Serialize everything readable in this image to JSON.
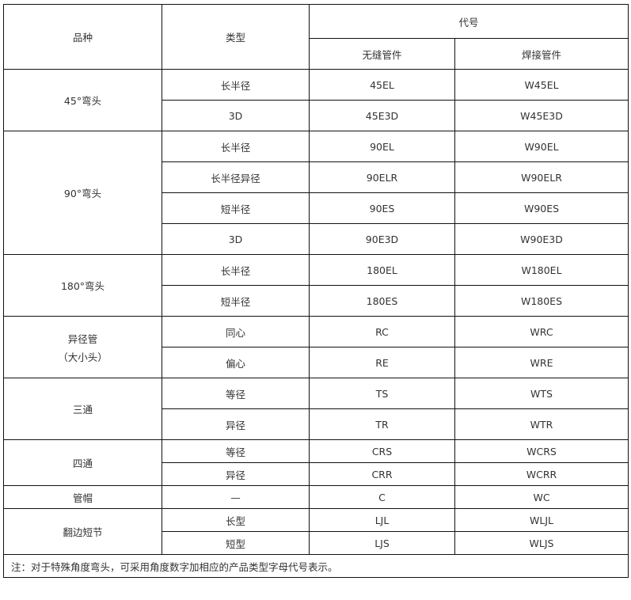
{
  "header": {
    "variety": "品种",
    "type": "类型",
    "code": "代号",
    "seamless": "无缝管件",
    "welded": "焊接管件"
  },
  "groups": [
    {
      "variety": "45°弯头",
      "rows": [
        {
          "type": "长半径",
          "seamless": "45EL",
          "welded": "W45EL"
        },
        {
          "type": "3D",
          "seamless": "45E3D",
          "welded": "W45E3D"
        }
      ]
    },
    {
      "variety": "90°弯头",
      "rows": [
        {
          "type": "长半径",
          "seamless": "90EL",
          "welded": "W90EL"
        },
        {
          "type": "长半径异径",
          "seamless": "90ELR",
          "welded": "W90ELR"
        },
        {
          "type": "短半径",
          "seamless": "90ES",
          "welded": "W90ES"
        },
        {
          "type": "3D",
          "seamless": "90E3D",
          "welded": "W90E3D"
        }
      ]
    },
    {
      "variety": "180°弯头",
      "rows": [
        {
          "type": "长半径",
          "seamless": "180EL",
          "welded": "W180EL"
        },
        {
          "type": "短半径",
          "seamless": "180ES",
          "welded": "W180ES"
        }
      ]
    },
    {
      "variety": "异径管",
      "variety_sub": "（大小头）",
      "rows": [
        {
          "type": "同心",
          "seamless": "RC",
          "welded": "WRC"
        },
        {
          "type": "偏心",
          "seamless": "RE",
          "welded": "WRE"
        }
      ]
    },
    {
      "variety": "三通",
      "rows": [
        {
          "type": "等径",
          "seamless": "TS",
          "welded": "WTS"
        },
        {
          "type": "异径",
          "seamless": "TR",
          "welded": "WTR"
        }
      ]
    },
    {
      "variety": "四通",
      "rows": [
        {
          "type": "等径",
          "seamless": "CRS",
          "welded": "WCRS"
        },
        {
          "type": "异径",
          "seamless": "CRR",
          "welded": "WCRR"
        }
      ]
    },
    {
      "variety": "管帽",
      "rows": [
        {
          "type": "—",
          "seamless": "C",
          "welded": "WC"
        }
      ]
    },
    {
      "variety": "翻边短节",
      "rows": [
        {
          "type": "长型",
          "seamless": "LJL",
          "welded": "WLJL"
        },
        {
          "type": "短型",
          "seamless": "LJS",
          "welded": "WLJS"
        }
      ]
    }
  ],
  "note": "注：对于特殊角度弯头，可采用角度数字加相应的产品类型字母代号表示。"
}
